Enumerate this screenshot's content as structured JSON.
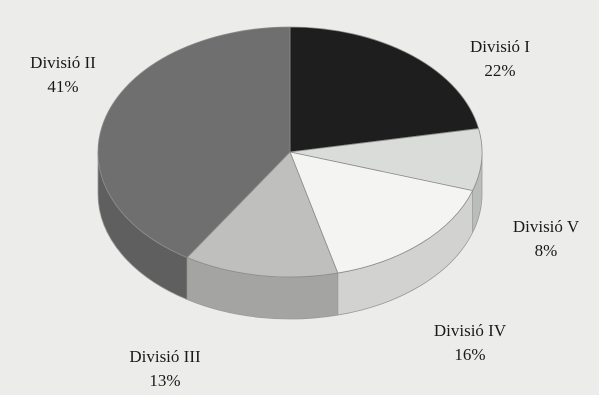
{
  "chart_data": {
    "type": "pie",
    "style": "3d-exploded-none",
    "slices": [
      {
        "label": "Divisió I",
        "value": 22,
        "display": "22%",
        "color": "#1e1e1e"
      },
      {
        "label": "Divisió V",
        "value": 8,
        "display": "8%",
        "color": "#d9dcd9"
      },
      {
        "label": "Divisió IV",
        "value": 16,
        "display": "16%",
        "color": "#f4f4f2"
      },
      {
        "label": "Divisió III",
        "value": 13,
        "display": "13%",
        "color": "#bfc0bd"
      },
      {
        "label": "Divisió II",
        "value": 41,
        "display": "41%",
        "color": "#6f6f6f"
      }
    ],
    "title": "",
    "legend": "none"
  }
}
